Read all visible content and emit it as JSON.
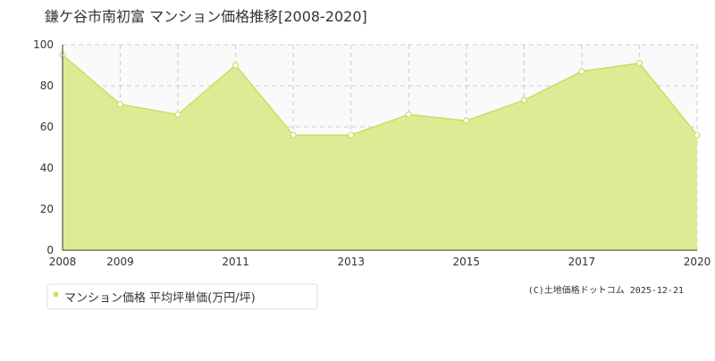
{
  "chart_data": {
    "type": "area",
    "title": "鎌ケ谷市南初富 マンション価格推移[2008-2020]",
    "categories": [
      "2008",
      "2009",
      null,
      "2011",
      null,
      "2013",
      null,
      "2015",
      null,
      "2017",
      null,
      "2020"
    ],
    "series": [
      {
        "name": "マンション価格 平均坪単価(万円/坪)",
        "color": "#c5e065",
        "fill": "#dcec94",
        "values": [
          95,
          71,
          66,
          90,
          56,
          56,
          66,
          63,
          73,
          87,
          91,
          56
        ]
      }
    ],
    "ylim": [
      0,
      100
    ],
    "yticks": [
      0,
      20,
      40,
      60,
      80,
      100
    ],
    "grid": true,
    "copyright": "(C)土地価格ドットコム 2025-12-21"
  }
}
